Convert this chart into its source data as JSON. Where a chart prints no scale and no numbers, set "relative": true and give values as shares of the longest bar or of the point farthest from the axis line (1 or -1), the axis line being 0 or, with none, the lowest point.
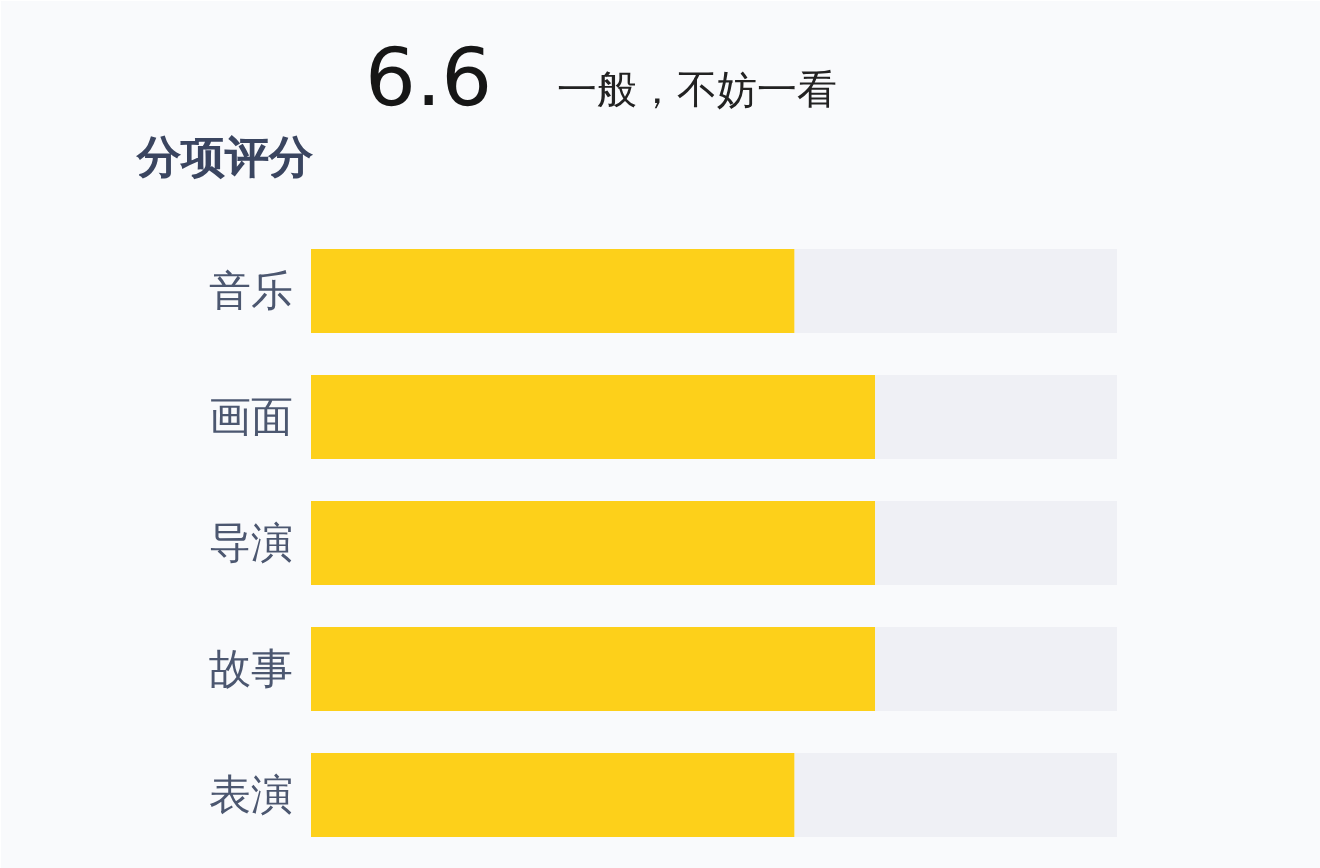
{
  "chart_data": {
    "type": "bar",
    "orientation": "horizontal",
    "stacked": true,
    "relative": true,
    "title": "6.6",
    "subtitle": "一般，不妨一看",
    "annotations": [
      "分项评分"
    ],
    "categories": [
      "音乐",
      "画面",
      "导演",
      "故事",
      "表演"
    ],
    "series": [
      {
        "color": "#fdd01a",
        "values": [
          0.6,
          0.7,
          0.7,
          0.7,
          0.6
        ]
      },
      {
        "color": "#eff0f5",
        "values": [
          0.4,
          0.3,
          0.3,
          0.3,
          0.4
        ]
      }
    ]
  }
}
